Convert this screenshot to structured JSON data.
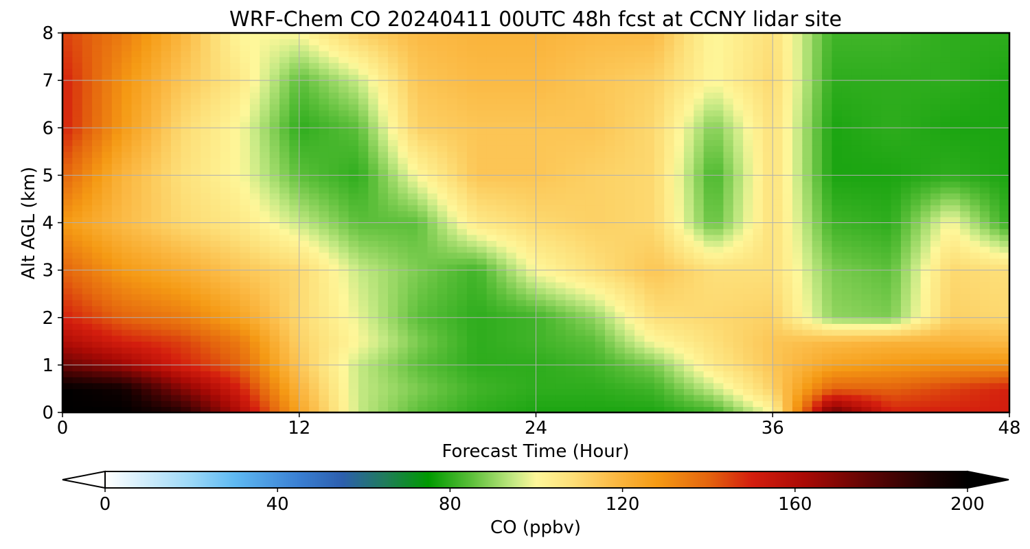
{
  "chart_data": {
    "type": "heatmap",
    "title": "WRF-Chem CO  20240411 00UTC 48h fcst at CCNY lidar site",
    "xlabel": "Forecast Time (Hour)",
    "ylabel": "Alt AGL (km)",
    "xlim": [
      0,
      48
    ],
    "ylim": [
      0,
      8
    ],
    "xticks": [
      "0",
      "12",
      "24",
      "36",
      "48"
    ],
    "yticks": [
      "0",
      "1",
      "2",
      "3",
      "4",
      "5",
      "6",
      "7",
      "8"
    ],
    "grid": true,
    "colorbar": {
      "label": "CO  (ppbv)",
      "range": [
        0,
        200
      ],
      "ticks": [
        "0",
        "40",
        "80",
        "120",
        "160",
        "200"
      ],
      "extend": "both",
      "placement": "bottom",
      "colors": [
        {
          "value": 0,
          "color": "#ffffff"
        },
        {
          "value": 20,
          "color": "#9bd8f7"
        },
        {
          "value": 30,
          "color": "#5fb9f2"
        },
        {
          "value": 45,
          "color": "#3a7fd2"
        },
        {
          "value": 55,
          "color": "#2d5fae"
        },
        {
          "value": 65,
          "color": "#1f7c5a"
        },
        {
          "value": 75,
          "color": "#009a00"
        },
        {
          "value": 85,
          "color": "#5cbf3a"
        },
        {
          "value": 95,
          "color": "#c7ea85"
        },
        {
          "value": 100,
          "color": "#fef79a"
        },
        {
          "value": 108,
          "color": "#fde07a"
        },
        {
          "value": 118,
          "color": "#fbba45"
        },
        {
          "value": 128,
          "color": "#f59a14"
        },
        {
          "value": 140,
          "color": "#e4640e"
        },
        {
          "value": 150,
          "color": "#d41e0e"
        },
        {
          "value": 162,
          "color": "#aa0a05"
        },
        {
          "value": 178,
          "color": "#5a0404"
        },
        {
          "value": 192,
          "color": "#1a0101"
        },
        {
          "value": 200,
          "color": "#000000"
        }
      ]
    },
    "times": [
      0,
      3,
      6,
      9,
      12,
      15,
      18,
      21,
      24,
      27,
      30,
      33,
      36,
      39,
      42,
      45,
      48
    ],
    "levels": [
      0,
      0.5,
      1,
      1.5,
      2,
      3,
      4,
      5,
      6,
      7,
      8
    ],
    "values": [
      [
        200,
        200,
        190,
        160,
        125,
        95,
        85,
        80,
        78,
        78,
        78,
        82,
        100,
        175,
        150,
        150,
        150
      ],
      [
        200,
        195,
        170,
        150,
        120,
        95,
        88,
        82,
        80,
        80,
        82,
        95,
        112,
        140,
        140,
        145,
        150
      ],
      [
        175,
        165,
        150,
        140,
        115,
        95,
        85,
        80,
        80,
        82,
        88,
        105,
        115,
        125,
        128,
        130,
        130
      ],
      [
        160,
        150,
        145,
        135,
        112,
        100,
        88,
        80,
        82,
        85,
        100,
        108,
        115,
        118,
        120,
        120,
        118
      ],
      [
        150,
        140,
        135,
        125,
        110,
        98,
        85,
        80,
        82,
        90,
        108,
        110,
        112,
        90,
        88,
        112,
        110
      ],
      [
        140,
        128,
        122,
        115,
        110,
        95,
        88,
        82,
        100,
        108,
        115,
        108,
        108,
        88,
        85,
        110,
        108
      ],
      [
        128,
        118,
        110,
        105,
        95,
        85,
        85,
        105,
        110,
        112,
        110,
        85,
        108,
        82,
        80,
        100,
        80
      ],
      [
        140,
        120,
        108,
        100,
        85,
        80,
        100,
        115,
        115,
        112,
        110,
        82,
        108,
        78,
        78,
        80,
        78
      ],
      [
        150,
        128,
        110,
        100,
        80,
        85,
        112,
        115,
        115,
        115,
        110,
        88,
        108,
        78,
        80,
        78,
        78
      ],
      [
        150,
        130,
        115,
        105,
        85,
        95,
        115,
        118,
        118,
        115,
        112,
        100,
        110,
        80,
        80,
        80,
        78
      ],
      [
        145,
        135,
        120,
        100,
        100,
        112,
        118,
        120,
        120,
        118,
        118,
        100,
        108,
        82,
        82,
        80,
        80
      ]
    ]
  }
}
